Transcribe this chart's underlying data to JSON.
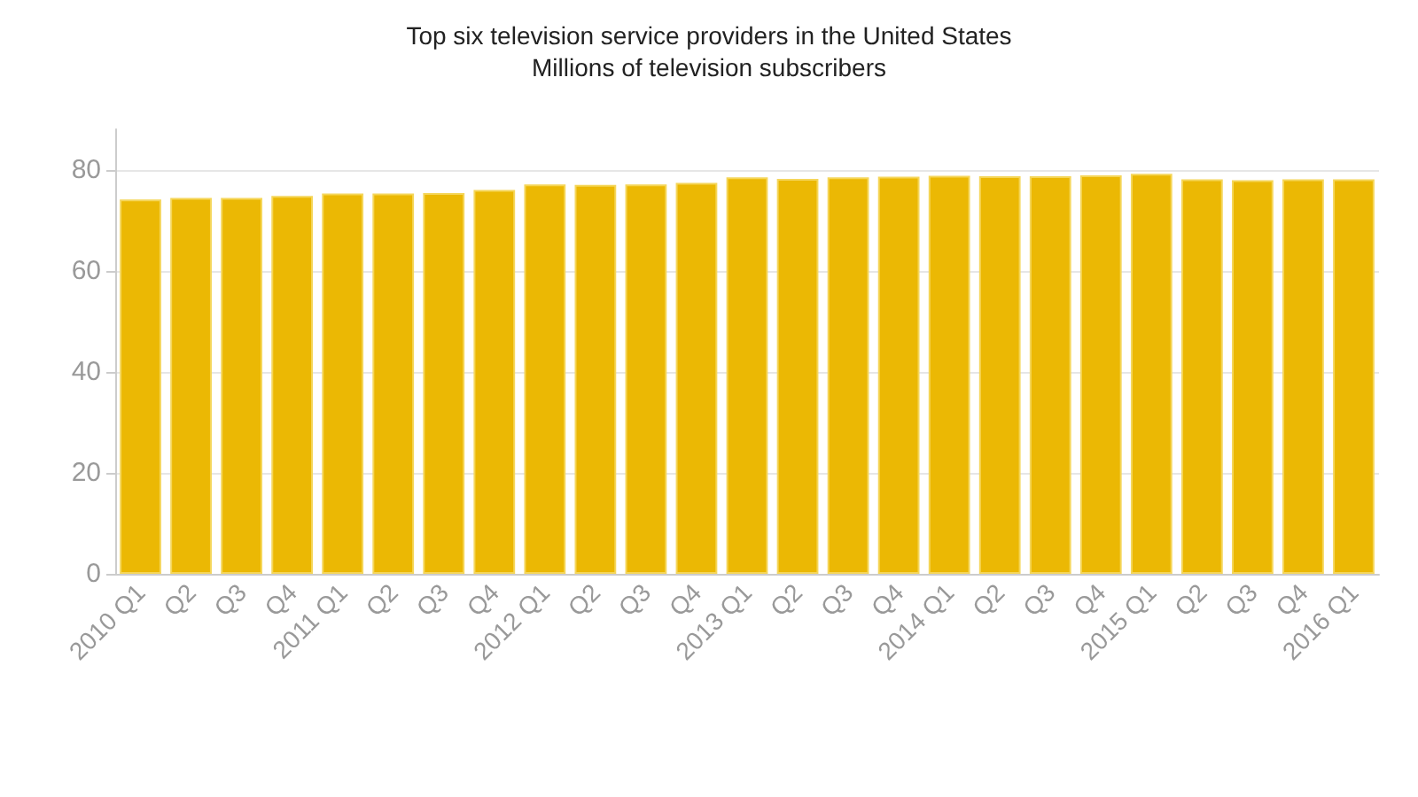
{
  "chart_data": {
    "type": "bar",
    "title": "Top six television service providers in the United States",
    "subtitle": "Millions of television subscribers",
    "categories": [
      "2010 Q1",
      "Q2",
      "Q3",
      "Q4",
      "2011 Q1",
      "Q2",
      "Q3",
      "Q4",
      "2012 Q1",
      "Q2",
      "Q3",
      "Q4",
      "2013 Q1",
      "Q2",
      "Q3",
      "Q4",
      "2014 Q1",
      "Q2",
      "Q3",
      "Q4",
      "2015 Q1",
      "Q2",
      "Q3",
      "Q4",
      "2016 Q1"
    ],
    "values": [
      74.1,
      74.4,
      74.4,
      74.8,
      75.3,
      75.3,
      75.4,
      76.0,
      77.1,
      77.0,
      77.1,
      77.4,
      78.5,
      78.2,
      78.5,
      78.6,
      78.8,
      78.7,
      78.7,
      78.9,
      79.2,
      78.1,
      77.9,
      78.1,
      78.1
    ],
    "color": "#ebb804",
    "ylim": [
      0,
      88
    ],
    "yticks": [
      0,
      20,
      40,
      60,
      80
    ],
    "grid": "y"
  }
}
